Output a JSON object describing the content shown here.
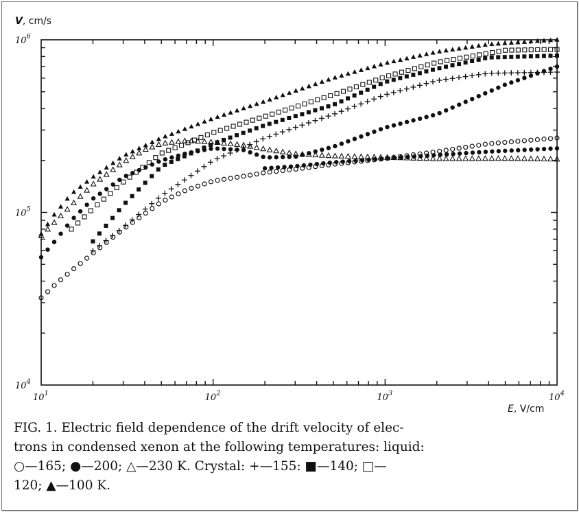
{
  "chart_data": {
    "type": "scatter",
    "x_scale": "log",
    "y_scale": "log",
    "xlim": [
      10,
      10000
    ],
    "ylim": [
      10000,
      1000000
    ],
    "x_ticks": [
      {
        "base": "10",
        "exp": "1",
        "value": 10
      },
      {
        "base": "10",
        "exp": "2",
        "value": 100
      },
      {
        "base": "10",
        "exp": "3",
        "value": 1000
      },
      {
        "base": "10",
        "exp": "4",
        "value": 10000
      }
    ],
    "y_ticks": [
      {
        "base": "10",
        "exp": "4",
        "value": 10000
      },
      {
        "base": "10",
        "exp": "5",
        "value": 100000
      },
      {
        "base": "10",
        "exp": "6",
        "value": 1000000
      }
    ],
    "ylabel_var": "V",
    "ylabel_unit": "cm/s",
    "xlabel_var": "E",
    "xlabel_unit": "V/cm",
    "series": [
      {
        "marker": "triangle-filled",
        "x": [
          10,
          12,
          15,
          20,
          30,
          50,
          100,
          200,
          500,
          1000,
          2000,
          4000,
          10000
        ],
        "y": [
          75000,
          98000,
          128000,
          160000,
          212000,
          270000,
          350000,
          440000,
          600000,
          730000,
          850000,
          940000,
          1000000
        ]
      },
      {
        "marker": "square-open",
        "x": [
          15,
          20,
          30,
          50,
          100,
          200,
          500,
          1000,
          2000,
          5000,
          10000
        ],
        "y": [
          80000,
          105000,
          150000,
          220000,
          290000,
          360000,
          480000,
          610000,
          740000,
          870000,
          880000
        ]
      },
      {
        "marker": "circle-filled",
        "x": [
          10,
          12,
          15,
          20,
          30,
          50,
          70,
          100,
          150,
          200,
          300,
          500,
          1000,
          2000,
          5000,
          10000
        ],
        "y": [
          55000,
          68000,
          90000,
          120000,
          160000,
          200000,
          220000,
          235000,
          230000,
          208000,
          210000,
          240000,
          310000,
          370000,
          550000,
          700000
        ]
      },
      {
        "marker": "square-filled",
        "x": [
          20,
          30,
          50,
          100,
          200,
          500,
          1000,
          2000,
          4000,
          10000
        ],
        "y": [
          68000,
          110000,
          185000,
          250000,
          320000,
          420000,
          570000,
          680000,
          790000,
          810000
        ]
      },
      {
        "marker": "plus",
        "x": [
          20,
          30,
          50,
          100,
          200,
          500,
          1000,
          2000,
          4000,
          10000
        ],
        "y": [
          60000,
          82000,
          125000,
          200000,
          270000,
          370000,
          480000,
          580000,
          640000,
          650000
        ]
      },
      {
        "marker": "triangle-open",
        "x": [
          10,
          15,
          20,
          30,
          40,
          50,
          70,
          100,
          150,
          200,
          300,
          500,
          1000,
          2000,
          5000,
          10000
        ],
        "y": [
          73000,
          110000,
          145000,
          195000,
          230000,
          250000,
          260000,
          255000,
          245000,
          232000,
          218000,
          212000,
          208000,
          204000,
          205000,
          203000
        ]
      },
      {
        "marker": "circle-open",
        "x": [
          10,
          12,
          15,
          20,
          30,
          50,
          70,
          100,
          150,
          200,
          300,
          500,
          1000,
          2000,
          4000,
          10000
        ],
        "y": [
          32000,
          38000,
          46000,
          58000,
          80000,
          115000,
          135000,
          152000,
          162000,
          170000,
          178000,
          190000,
          205000,
          225000,
          250000,
          270000
        ]
      },
      {
        "marker": "circle-filled",
        "x": [
          200,
          300,
          500,
          1000,
          2000,
          4000,
          10000
        ],
        "y": [
          180000,
          185000,
          195000,
          205000,
          215000,
          225000,
          235000
        ]
      }
    ]
  },
  "caption": {
    "line1": "FIG. 1.  Electric field dependence of the drift velocity of elec-",
    "line2": "trons in condensed xenon at the following temperatures:  liquid:",
    "line3": "○—165;  ●—200;  △—230 K.  Crystal:  +—155:  ■—140;  □—",
    "line4": "120;  ▲—100 K."
  }
}
